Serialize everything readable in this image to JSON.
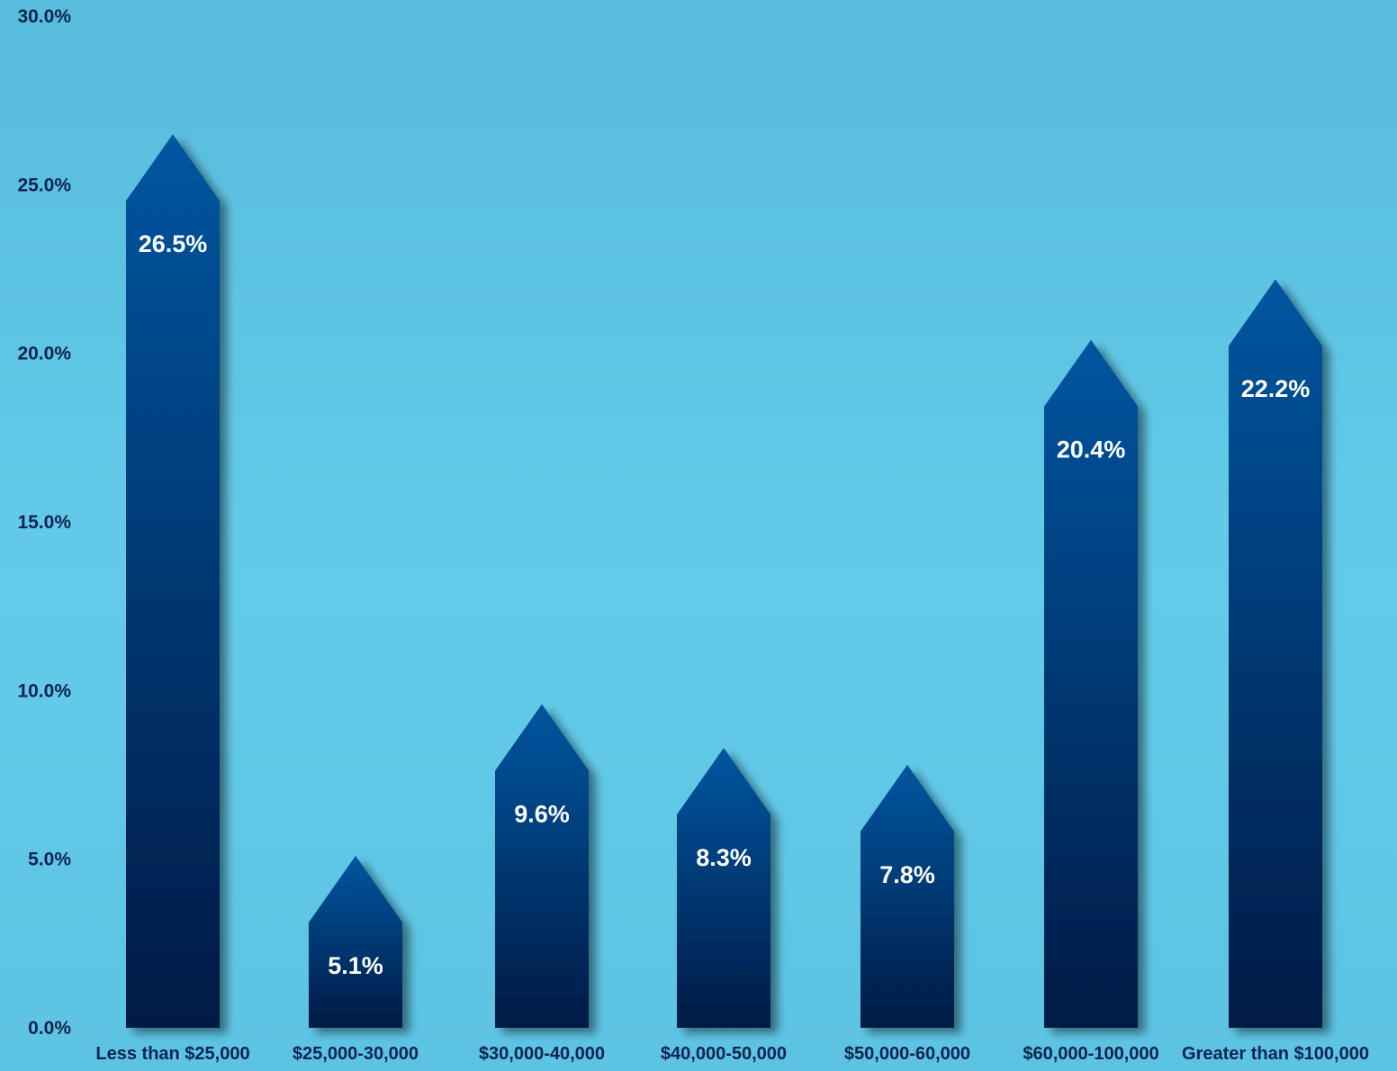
{
  "chart_data": {
    "type": "bar",
    "title": "",
    "xlabel": "",
    "ylabel": "",
    "ylim": [
      0,
      30
    ],
    "yticks": [
      0,
      5,
      10,
      15,
      20,
      25,
      30
    ],
    "ytick_labels": [
      "0.0%",
      "5.0%",
      "10.0%",
      "15.0%",
      "20.0%",
      "25.0%",
      "30.0%"
    ],
    "grid": true,
    "legend": "none",
    "categories": [
      "Less than $25,000",
      "$25,000-30,000",
      "$30,000-40,000",
      "$40,000-50,000",
      "$50,000-60,000",
      "$60,000-100,000",
      "Greater than $100,000"
    ],
    "values": [
      26.5,
      5.1,
      9.6,
      8.3,
      7.8,
      20.4,
      22.2
    ],
    "value_labels": [
      "26.5%",
      "5.1%",
      "9.6%",
      "8.3%",
      "7.8%",
      "20.4%",
      "22.2%"
    ],
    "colors": {
      "background": "#5ec5e4",
      "bar_top": "#0656a0",
      "bar_bottom": "#041a45",
      "gridline": "#f2f6fa",
      "axis_text": "#0d2350",
      "value_text": "#ffffff"
    }
  }
}
